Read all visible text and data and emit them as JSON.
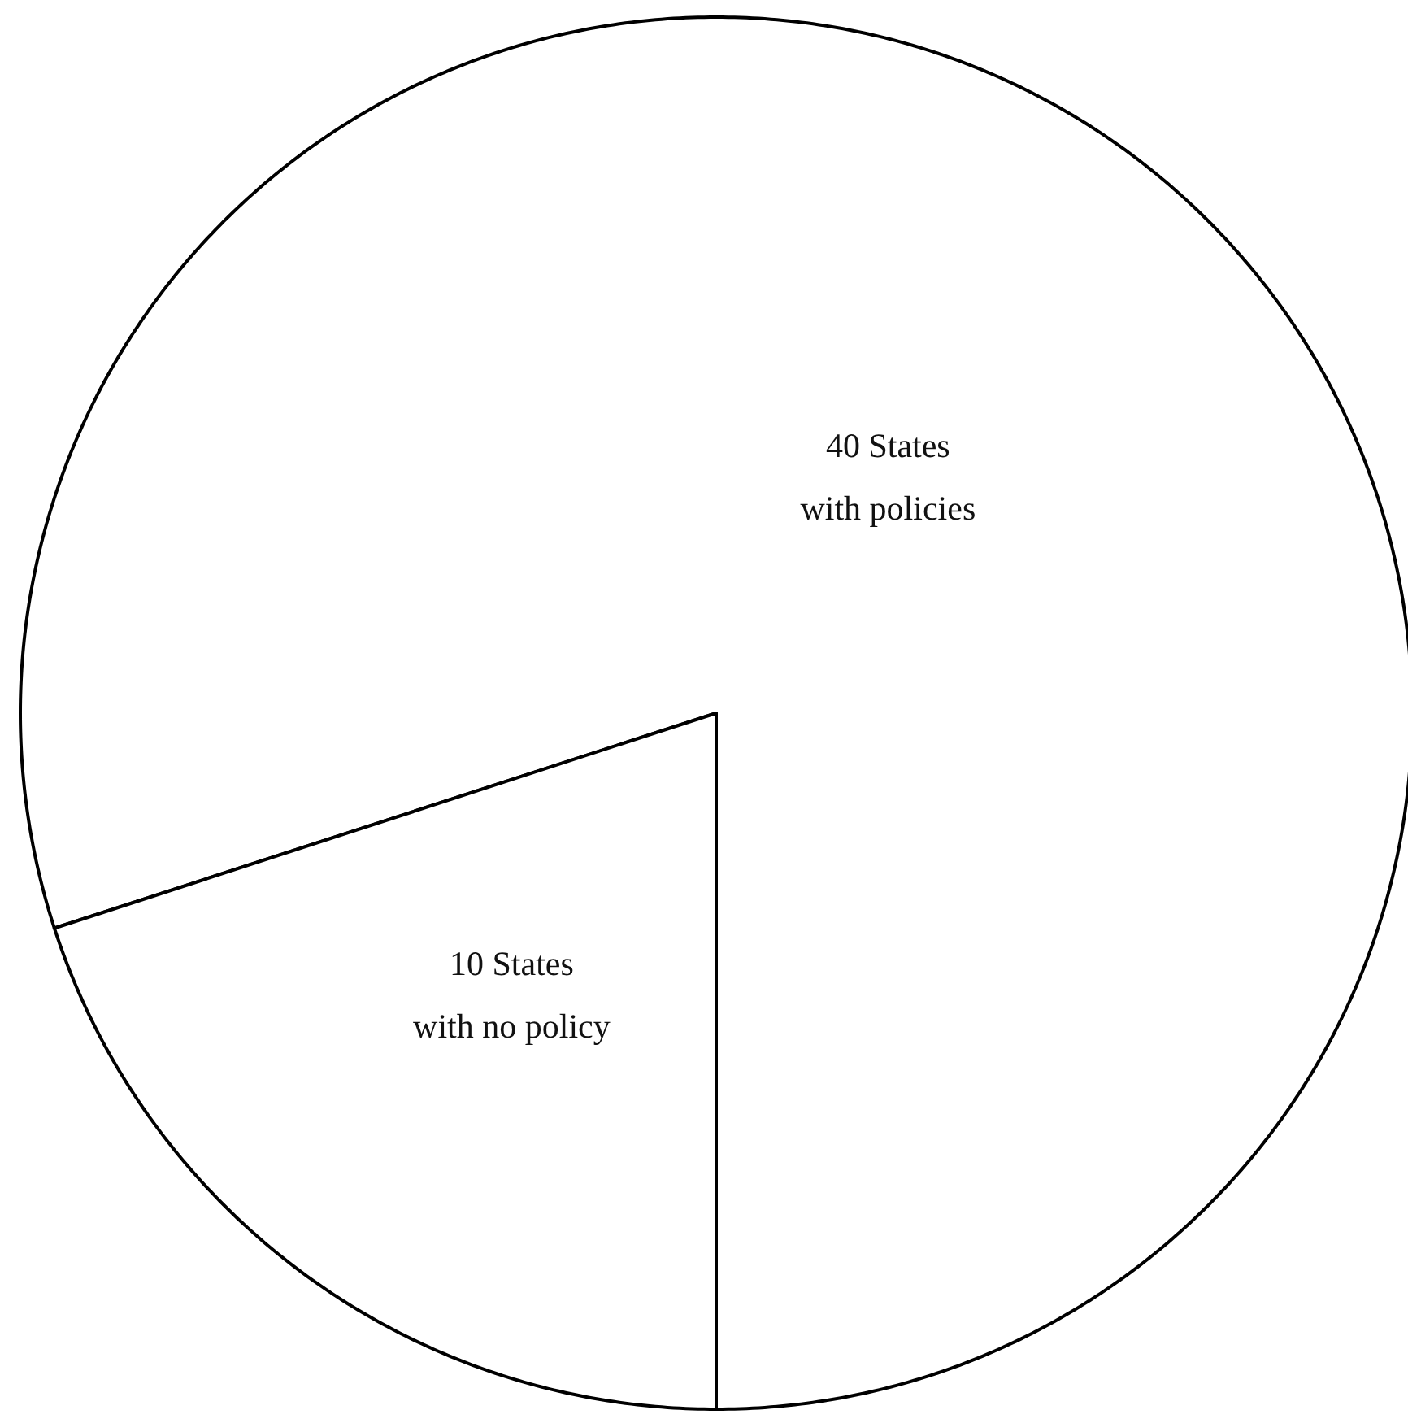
{
  "chart_data": {
    "type": "pie",
    "categories": [
      "40 States\nwith policies",
      "10 States\nwith no policy"
    ],
    "values": [
      40,
      10
    ],
    "colors": [
      "#ffffff",
      "#ffffff"
    ]
  }
}
